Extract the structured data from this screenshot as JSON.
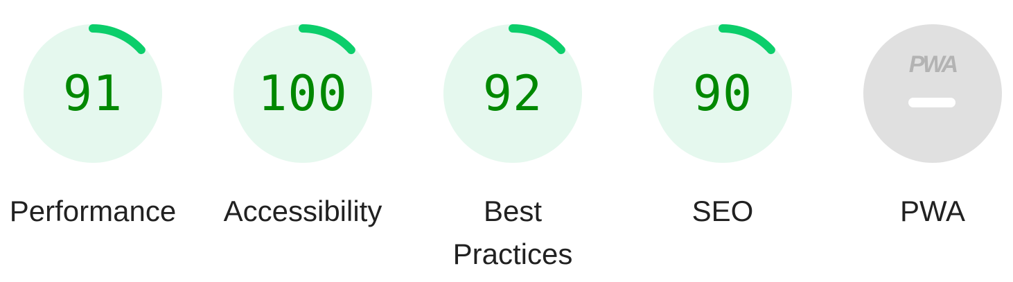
{
  "gauges": [
    {
      "score": 91,
      "label": "Performance"
    },
    {
      "score": 100,
      "label": "Accessibility"
    },
    {
      "score": 92,
      "label": "Best Practices"
    },
    {
      "score": 90,
      "label": "SEO"
    }
  ],
  "pwa": {
    "label": "PWA",
    "badge_text": "PWA"
  },
  "colors": {
    "pass_text": "#008800",
    "pass_arc": "#0cce6b",
    "pass_bg": "#e5f8ee",
    "na_bg": "#e0e0e0",
    "na_mark": "#ffffff",
    "na_logo": "#b3b3b3",
    "label_text": "#212121"
  }
}
